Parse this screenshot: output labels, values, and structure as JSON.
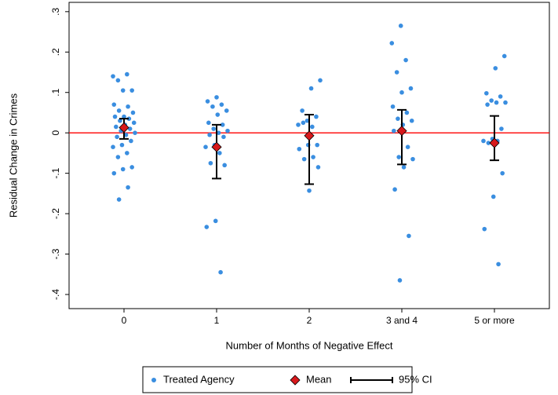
{
  "chart_data": {
    "type": "strip",
    "x_label": "Number of Months of Negative Effect",
    "y_label": "Residual Change in Crimes",
    "categories": [
      "0",
      "1",
      "2",
      "3 and 4",
      "5 or more"
    ],
    "series": [
      {
        "name": "Treated Agency",
        "color": "#3a8ee0",
        "values": [
          [
            0.14,
            0.145,
            0.13,
            0.105,
            0.105,
            0.07,
            0.065,
            0.055,
            0.05,
            0.04,
            0.04,
            0.035,
            0.03,
            0.025,
            0.02,
            0.015,
            0.01,
            0.005,
            0,
            -0.005,
            -0.01,
            -0.02,
            -0.03,
            -0.035,
            -0.05,
            -0.06,
            -0.085,
            -0.09,
            -0.1,
            -0.135,
            -0.165
          ],
          [
            0.088,
            0.078,
            0.07,
            0.065,
            0.055,
            0.045,
            0.025,
            0.02,
            0.01,
            0.005,
            0,
            -0.005,
            -0.01,
            -0.03,
            -0.035,
            -0.05,
            -0.075,
            -0.08,
            -0.218,
            -0.233,
            -0.345
          ],
          [
            0.13,
            0.11,
            0.055,
            0.04,
            0.03,
            0.02,
            0.015,
            0.025,
            -0.03,
            -0.03,
            -0.04,
            -0.06,
            -0.065,
            -0.085,
            -0.143
          ],
          [
            0.265,
            0.222,
            0.18,
            0.15,
            0.11,
            0.1,
            0.065,
            0.05,
            0.035,
            0.03,
            0.02,
            0.005,
            -0.035,
            -0.06,
            -0.065,
            -0.085,
            -0.14,
            -0.255,
            -0.365
          ],
          [
            0.19,
            0.16,
            0.098,
            0.09,
            0.08,
            0.075,
            0.075,
            0.07,
            0.01,
            -0.015,
            -0.02,
            -0.02,
            -0.025,
            -0.1,
            -0.158,
            -0.238,
            -0.325
          ]
        ]
      }
    ],
    "mean": {
      "name": "Mean",
      "color": "#d7191c",
      "values": [
        0.013,
        -0.035,
        -0.007,
        0.005,
        -0.025
      ]
    },
    "ci": {
      "name": "95% CI",
      "color": "#000000",
      "lower": [
        -0.015,
        -0.113,
        -0.127,
        -0.078,
        -0.068
      ],
      "upper": [
        0.035,
        0.02,
        0.045,
        0.057,
        0.042
      ]
    },
    "reference_line": {
      "value": 0,
      "color": "#ff0000"
    },
    "ylim": [
      -0.435,
      0.323
    ],
    "yticks": [
      {
        "value": -0.4,
        "label": "-.4"
      },
      {
        "value": -0.3,
        "label": "-.3"
      },
      {
        "value": -0.2,
        "label": "-.2"
      },
      {
        "value": -0.1,
        "label": "-.1"
      },
      0,
      {
        "value": 0.1,
        "label": ".1"
      },
      {
        "value": 0.2,
        "label": ".2"
      },
      {
        "value": 0.3,
        "label": ".3"
      }
    ],
    "legend": "bottom"
  }
}
